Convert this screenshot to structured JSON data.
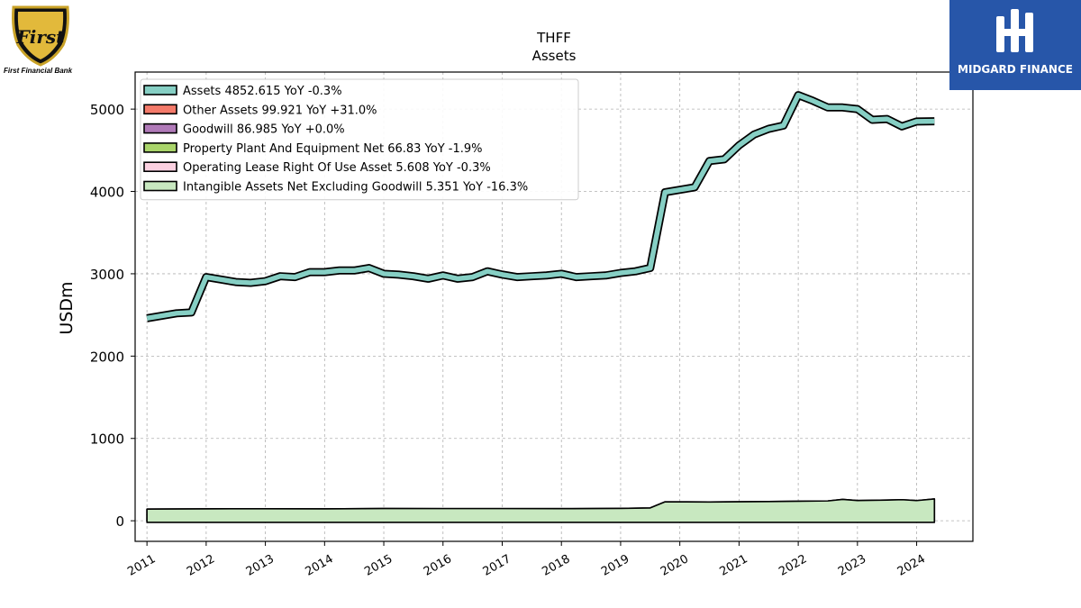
{
  "logos": {
    "left_caption": "First Financial Bank",
    "left_mark": "First",
    "right_name": "MIDGARD FINANCE"
  },
  "chart_data": {
    "type": "area",
    "title": "THFF",
    "subtitle": "Assets",
    "ylabel": "USDm",
    "xlabel": "",
    "xlim": [
      2010.8,
      2024.95
    ],
    "ylim": [
      -250,
      5450
    ],
    "yticks": [
      0,
      1000,
      2000,
      3000,
      4000,
      5000
    ],
    "xticks": [
      "2011",
      "2012",
      "2013",
      "2014",
      "2015",
      "2016",
      "2017",
      "2018",
      "2019",
      "2020",
      "2021",
      "2022",
      "2023",
      "2024"
    ],
    "grid": true,
    "legend_position": "top-left",
    "colors": {
      "assets": "#86cfc4",
      "other_assets": "#f47a6a",
      "goodwill": "#b07ab8",
      "ppe": "#a9d46a",
      "lease": "#fbd0e0",
      "intangible": "#c8e8c0"
    },
    "legend": [
      "Assets  4852.615 YoY -0.3%",
      "Other Assets  99.921 YoY +31.0%",
      "Goodwill  86.985 YoY +0.0%",
      "Property Plant And Equipment Net  66.83 YoY -1.9%",
      "Operating Lease Right Of Use Asset  5.608 YoY -0.3%",
      "Intangible Assets Net Excluding Goodwill  5.351 YoY -16.3%"
    ],
    "series": [
      {
        "name": "Assets",
        "x": [
          2011.0,
          2011.25,
          2011.5,
          2011.75,
          2012.0,
          2012.25,
          2012.5,
          2012.75,
          2013.0,
          2013.25,
          2013.5,
          2013.75,
          2014.0,
          2014.25,
          2014.5,
          2014.75,
          2015.0,
          2015.25,
          2015.5,
          2015.75,
          2016.0,
          2016.25,
          2016.5,
          2016.75,
          2017.0,
          2017.25,
          2017.5,
          2017.75,
          2018.0,
          2018.25,
          2018.5,
          2018.75,
          2019.0,
          2019.25,
          2019.5,
          2019.75,
          2020.0,
          2020.25,
          2020.5,
          2020.75,
          2021.0,
          2021.25,
          2021.5,
          2021.75,
          2022.0,
          2022.25,
          2022.5,
          2022.75,
          2023.0,
          2023.25,
          2023.5,
          2023.75,
          2024.0,
          2024.3
        ],
        "values": [
          2460,
          2490,
          2520,
          2530,
          2960,
          2930,
          2900,
          2890,
          2910,
          2970,
          2960,
          3020,
          3020,
          3040,
          3040,
          3070,
          3000,
          2990,
          2970,
          2940,
          2980,
          2940,
          2960,
          3030,
          2990,
          2960,
          2970,
          2980,
          3000,
          2960,
          2970,
          2980,
          3010,
          3030,
          3070,
          3990,
          4020,
          4050,
          4370,
          4390,
          4560,
          4690,
          4760,
          4800,
          5170,
          5100,
          5020,
          5020,
          5000,
          4870,
          4880,
          4790,
          4850,
          4853
        ]
      },
      {
        "name": "Other Assets",
        "x": [
          2011.0,
          2012.0,
          2013.0,
          2014.0,
          2015.0,
          2016.0,
          2017.0,
          2018.0,
          2019.0,
          2019.5,
          2019.75,
          2020.5,
          2021.5,
          2022.5,
          2022.75,
          2023.0,
          2023.5,
          2023.75,
          2024.0,
          2024.3
        ],
        "values": [
          70,
          72,
          72,
          70,
          72,
          70,
          70,
          68,
          70,
          70,
          78,
          75,
          78,
          80,
          96,
          82,
          85,
          90,
          78,
          100
        ]
      },
      {
        "name": "Goodwill",
        "values": [
          39,
          39,
          39,
          39,
          39,
          39,
          39,
          39,
          39,
          39,
          87,
          87,
          87,
          87,
          87,
          87,
          87,
          87,
          87,
          87
        ]
      },
      {
        "name": "Property Plant And Equipment Net",
        "values": [
          30,
          31,
          32,
          33,
          35,
          36,
          36,
          37,
          38,
          38,
          47,
          50,
          53,
          60,
          62,
          64,
          66,
          67,
          68,
          67
        ]
      },
      {
        "name": "Operating Lease Right Of Use Asset",
        "values": [
          0,
          0,
          0,
          0,
          0,
          0,
          0,
          0,
          0,
          6,
          6,
          6,
          6,
          6,
          6,
          6,
          6,
          6,
          6,
          6
        ]
      },
      {
        "name": "Intangible Assets Net Excluding Goodwill",
        "values": [
          3,
          3,
          3,
          3,
          3,
          3,
          3,
          3,
          3,
          3,
          12,
          10,
          9,
          8,
          8,
          7,
          7,
          6,
          6,
          5
        ]
      }
    ]
  }
}
